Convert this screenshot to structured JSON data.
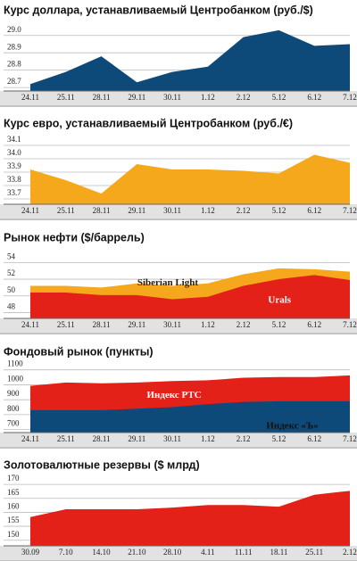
{
  "chart_data": [
    {
      "type": "area",
      "title": "Курс доллара, устанавливаемый Центробанком (руб./$)",
      "categories": [
        "24.11",
        "25.11",
        "28.11",
        "29.11",
        "30.11",
        "1.12",
        "2.12",
        "5.12",
        "6.12",
        "7.12"
      ],
      "values": [
        28.72,
        28.79,
        28.88,
        28.73,
        28.79,
        28.82,
        28.99,
        29.03,
        28.94,
        28.95
      ],
      "color": "#0d4a7a",
      "ylim": [
        28.68,
        29.05
      ],
      "yticks": [
        28.7,
        28.8,
        28.9,
        {
          "value": 29.0,
          "label": "29.0"
        }
      ],
      "grid": true
    },
    {
      "type": "area",
      "title": "Курс евро, устанавливаемый Центробанком (руб./€)",
      "categories": [
        "24.11",
        "25.11",
        "28.11",
        "29.11",
        "30.11",
        "1.12",
        "2.12",
        "5.12",
        "6.12",
        "7.12"
      ],
      "values": [
        33.92,
        33.84,
        33.74,
        33.96,
        33.92,
        33.92,
        33.91,
        33.89,
        34.03,
        33.97
      ],
      "color": "#f5a81c",
      "ylim": [
        33.66,
        34.14
      ],
      "yticks": [
        33.7,
        33.8,
        33.9,
        {
          "value": 34.0,
          "label": "34.0"
        },
        34.1
      ],
      "grid": true
    },
    {
      "type": "area",
      "title": "Рынок нефти ($/баррель)",
      "categories": [
        "24.11",
        "25.11",
        "28.11",
        "29.11",
        "30.11",
        "1.12",
        "2.12",
        "5.12",
        "6.12",
        "7.12"
      ],
      "series": [
        {
          "name": "Siberian Light",
          "color": "#f5a81c",
          "values": [
            51.2,
            51.2,
            51.0,
            51.5,
            51.2,
            51.5,
            52.6,
            53.3,
            53.2,
            52.9
          ]
        },
        {
          "name": "Urals",
          "color": "#e32119",
          "values": [
            50.4,
            50.4,
            50.1,
            50.1,
            49.6,
            49.9,
            51.2,
            52.0,
            52.5,
            51.9
          ]
        }
      ],
      "ylim": [
        47.3,
        55
      ],
      "yticks": [
        48,
        50,
        52,
        54
      ],
      "grid": true
    },
    {
      "type": "area",
      "title": "Фондовый рынок (пункты)",
      "categories": [
        "24.11",
        "25.11",
        "28.11",
        "29.11",
        "30.11",
        "1.12",
        "2.12",
        "5.12",
        "6.12",
        "7.12"
      ],
      "series": [
        {
          "name": "Индекс РТС",
          "color": "#e32119",
          "values": [
            993,
            1015,
            1010,
            1015,
            1025,
            1030,
            1047,
            1052,
            1052,
            1063
          ]
        },
        {
          "name": "Индекс «Ъ»",
          "color": "#0d4a7a",
          "values": [
            830,
            830,
            830,
            840,
            850,
            870,
            885,
            890,
            890,
            890
          ]
        }
      ],
      "ylim": [
        680,
        1110
      ],
      "yticks": [
        700,
        800,
        900,
        1000,
        1100
      ],
      "grid": true
    },
    {
      "type": "area",
      "title": "Золотовалютные резервы ($ млрд)",
      "categories": [
        "30.09",
        "7.10",
        "14.10",
        "21.10",
        "28.10",
        "4.11",
        "11.11",
        "18.11",
        "25.11",
        "2.12"
      ],
      "values": [
        158.3,
        161.1,
        161.1,
        161.1,
        161.7,
        162.6,
        162.6,
        162.0,
        166.3,
        167.7
      ],
      "color": "#e32119",
      "ylim": [
        148,
        171
      ],
      "yticks": [
        150,
        155,
        160,
        165,
        170
      ],
      "grid": true
    }
  ]
}
